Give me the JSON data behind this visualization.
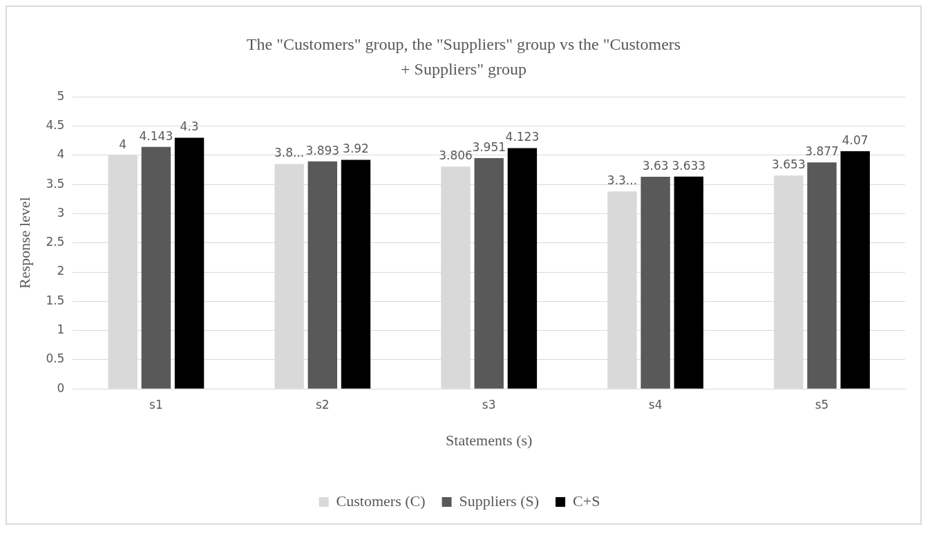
{
  "chart_data": {
    "type": "bar",
    "title": "The \"Customers\" group, the \"Suppliers\" group vs the \"Customers + Suppliers\" group",
    "xlabel": "Statements (s)",
    "ylabel": "Response level",
    "categories": [
      "s1",
      "s2",
      "s3",
      "s4",
      "s5"
    ],
    "series": [
      {
        "name": "Customers (C)",
        "color": "#d9d9d9",
        "values": [
          4,
          3.85,
          3.806,
          3.38,
          3.653
        ],
        "value_labels": [
          "4",
          "3.8...",
          "3.806",
          "3.3...",
          "3.653"
        ]
      },
      {
        "name": "Suppliers (S)",
        "color": "#595959",
        "values": [
          4.143,
          3.893,
          3.951,
          3.63,
          3.877
        ],
        "value_labels": [
          "4.143",
          "3.893",
          "3.951",
          "3.63",
          "3.877"
        ]
      },
      {
        "name": "C+S",
        "color": "#000000",
        "values": [
          4.3,
          3.92,
          4.123,
          3.633,
          4.07
        ],
        "value_labels": [
          "4.3",
          "3.92",
          "4.123",
          "3.633",
          "4.07"
        ]
      }
    ],
    "ylim": [
      0,
      5
    ],
    "yticks": [
      0,
      0.5,
      1,
      1.5,
      2,
      2.5,
      3,
      3.5,
      4,
      4.5,
      5
    ],
    "grid": "y",
    "legend": "bottom"
  }
}
